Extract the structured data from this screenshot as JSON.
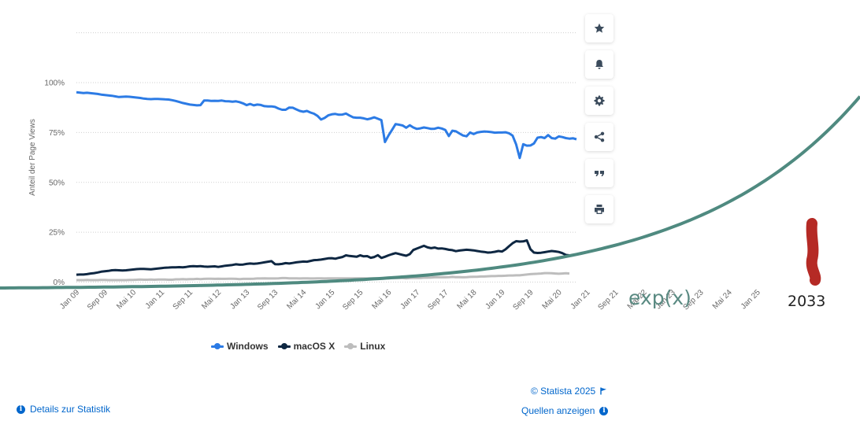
{
  "colors": {
    "windows": "#2c7be5",
    "macos": "#0e2742",
    "linux": "#bdbdbd",
    "grid": "#cfcfcf",
    "exp_curve": "#4f8a80",
    "exp_label": "#5a8a82",
    "marker": "#b52a25",
    "link": "#0066cc",
    "icon": "#3b4b5c"
  },
  "chart_data": {
    "type": "line",
    "ylabel": "Anteil der Page Views",
    "ylim": [
      0,
      125
    ],
    "yticks": [
      "0%",
      "25%",
      "50%",
      "75%",
      "100%"
    ],
    "grid": true,
    "legend_position": "bottom",
    "x_tick_labels": [
      "Jan 09",
      "Sep 09",
      "Mai 10",
      "Jan 11",
      "Sep 11",
      "Mai 12",
      "Jan 13",
      "Sep 13",
      "Mai 14",
      "Jan 15",
      "Sep 15",
      "Mai 16",
      "Jan 17",
      "Sep 17",
      "Mai 18",
      "Jan 19",
      "Sep 19",
      "Mai 20",
      "Jan 21",
      "Sep 21",
      "Mai 22",
      "Jan 23",
      "Sep 23",
      "Mai 24",
      "Jan 25"
    ],
    "x_start": "2009-01",
    "x_step_months": 1,
    "series": [
      {
        "name": "Windows",
        "values": [
          95.2,
          95,
          94.8,
          94.9,
          94.7,
          94.5,
          94.3,
          94,
          93.8,
          93.6,
          93.4,
          93.1,
          92.8,
          92.9,
          93,
          92.9,
          92.7,
          92.5,
          92.3,
          92,
          91.8,
          91.7,
          91.8,
          91.8,
          91.7,
          91.6,
          91.5,
          91.2,
          90.8,
          90.3,
          89.8,
          89.4,
          89,
          88.8,
          88.6,
          88.7,
          91,
          91,
          90.8,
          90.9,
          90.8,
          91,
          90.7,
          90.6,
          90.4,
          90.6,
          90.2,
          89.6,
          88.7,
          89.3,
          88.6,
          89,
          88.8,
          88.2,
          88.1,
          88.1,
          87.8,
          87,
          86.4,
          86.4,
          87.5,
          87.4,
          86.6,
          85.8,
          85.4,
          85.8,
          85,
          84.4,
          83.3,
          81.5,
          82.3,
          83.6,
          84.1,
          84.3,
          83.9,
          84,
          84.5,
          83.5,
          82.6,
          82.4,
          82.4,
          82.1,
          81.6,
          82,
          82.6,
          81.9,
          81.2,
          70.2,
          73.5,
          76.3,
          79.2,
          78.9,
          78.5,
          77.4,
          78.6,
          77.5,
          76.8,
          77.1,
          77.5,
          77.2,
          76.8,
          76.9,
          77.4,
          77,
          76.3,
          73.2,
          75.9,
          75.6,
          74.5,
          73.5,
          73.1,
          75,
          74.2,
          75,
          75.3,
          75.5,
          75.4,
          75.2,
          74.9,
          75,
          75,
          75.1,
          74.6,
          73.4,
          69,
          62.2,
          69.1,
          68.4,
          68.5,
          69.5,
          72.4,
          72.7,
          72.2,
          73.7,
          72.2,
          71.9,
          73,
          72.7,
          72.2,
          71.9,
          72.1,
          71.6
        ],
        "color": "#2c7be5"
      },
      {
        "name": "macOS X",
        "values": [
          3.7,
          3.8,
          3.8,
          4,
          4.3,
          4.5,
          4.8,
          5.2,
          5.4,
          5.6,
          5.9,
          6,
          5.9,
          5.8,
          5.9,
          6.1,
          6.3,
          6.5,
          6.6,
          6.6,
          6.5,
          6.4,
          6.6,
          6.8,
          7,
          7.2,
          7.3,
          7.4,
          7.4,
          7.5,
          7.4,
          7.6,
          7.9,
          8,
          7.9,
          8,
          7.8,
          7.7,
          7.8,
          7.9,
          7.6,
          7.9,
          8.2,
          8.4,
          8.6,
          8.9,
          8.7,
          8.8,
          9.1,
          9.3,
          9.2,
          9.3,
          9.6,
          9.9,
          10.2,
          10.5,
          9,
          8.9,
          9.1,
          9.5,
          9.3,
          9.6,
          9.9,
          10.1,
          10.3,
          10.2,
          10.6,
          11,
          11.1,
          11.3,
          11.6,
          11.9,
          12,
          11.7,
          12.2,
          12.6,
          13.4,
          13.1,
          12.9,
          12.7,
          13.4,
          12.9,
          13,
          12.2,
          12.6,
          13.5,
          12.1,
          12.7,
          13.4,
          14,
          14.5,
          14.1,
          13.6,
          13.2,
          14,
          16.1,
          16.8,
          17.5,
          18.2,
          17.4,
          17,
          17.3,
          16.8,
          16.9,
          16.6,
          16.2,
          16,
          15.5,
          15.8,
          16,
          16.2,
          16.1,
          15.9,
          15.6,
          15.3,
          15.1,
          14.8,
          14.9,
          15.2,
          15.6,
          15.3,
          16.4,
          18,
          19.5,
          20.5,
          20.3,
          20.4,
          20.9,
          16.5,
          14.8,
          14.6,
          14.7,
          15,
          15.3,
          15.6,
          15.4,
          15.1,
          14.5,
          13.6,
          13.4
        ],
        "color": "#0e2742"
      },
      {
        "name": "Linux",
        "values": [
          1,
          1,
          1,
          1.1,
          1,
          1,
          1,
          1.1,
          1.1,
          1,
          1,
          1,
          1,
          1,
          1,
          1.1,
          1.1,
          1.2,
          1.3,
          1.2,
          1.2,
          1.3,
          1.2,
          1.3,
          1.3,
          1.3,
          1.2,
          1.2,
          1.4,
          1.4,
          1.5,
          1.4,
          1.5,
          1.5,
          1.6,
          1.5,
          1.6,
          1.7,
          1.7,
          1.6,
          1.7,
          1.6,
          1.6,
          1.7,
          1.7,
          1.6,
          1.5,
          1.6,
          1.6,
          1.6,
          1.7,
          1.8,
          1.8,
          1.9,
          1.8,
          1.8,
          1.8,
          1.9,
          2,
          2,
          1.9,
          1.9,
          1.9,
          1.8,
          1.9,
          1.9,
          1.8,
          1.8,
          1.9,
          1.9,
          1.8,
          1.9,
          1.9,
          1.9,
          1.9,
          1.9,
          1.9,
          1.9,
          1.9,
          1.9,
          1.9,
          1.9,
          1.8,
          1.9,
          1.9,
          1.9,
          1.9,
          2,
          1.9,
          2,
          2,
          2,
          2,
          1.9,
          2,
          2.1,
          2.1,
          2.1,
          2.2,
          2.2,
          2.3,
          2.4,
          2.4,
          2.4,
          2.4,
          2.5,
          2.6,
          2.5,
          2.5,
          2.4,
          2.5,
          2.6,
          2.7,
          2.7,
          2.8,
          2.8,
          2.9,
          3,
          3,
          3.1,
          3.1,
          3.2,
          3.3,
          3.3,
          3.4,
          3.4,
          3.6,
          3.8,
          4,
          4.1,
          4.2,
          4.3,
          4.5,
          4.5,
          4.4,
          4.3,
          4.2,
          4.3,
          4.4,
          4.3
        ],
        "color": "#bdbdbd"
      }
    ]
  },
  "overlay": {
    "curve_label": "exp(x)",
    "marker_label": "2033"
  },
  "legend": [
    {
      "label": "Windows",
      "color": "#2c7be5"
    },
    {
      "label": "macOS X",
      "color": "#0e2742"
    },
    {
      "label": "Linux",
      "color": "#bdbdbd"
    }
  ],
  "toolbar": {
    "items": [
      {
        "icon": "star-icon"
      },
      {
        "icon": "bell-icon"
      },
      {
        "icon": "gear-icon"
      },
      {
        "icon": "share-icon"
      },
      {
        "icon": "quote-icon"
      },
      {
        "icon": "print-icon"
      }
    ]
  },
  "footer": {
    "copyright": "© Statista 2025",
    "sources": "Quellen anzeigen",
    "details": "Details zur Statistik",
    "info_icon_glyph": "i"
  }
}
